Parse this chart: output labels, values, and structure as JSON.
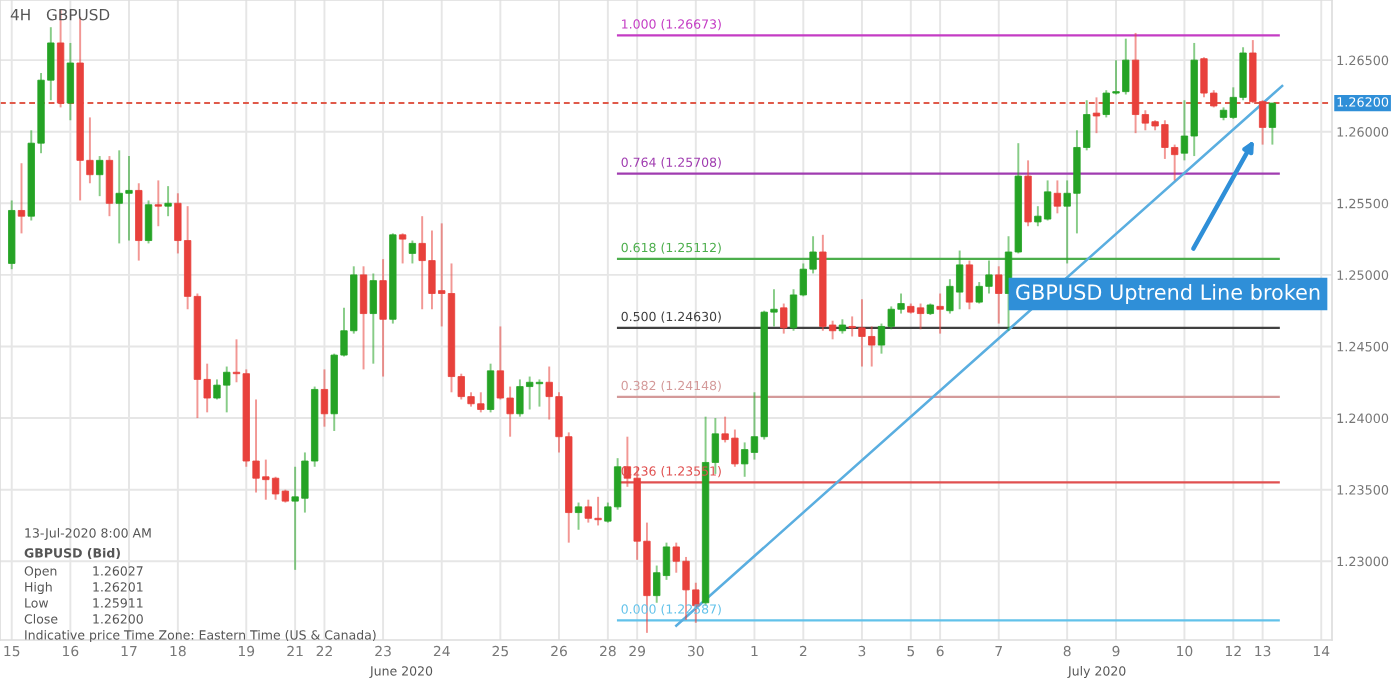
{
  "chart_data": {
    "type": "candlestick",
    "title": "GBPUSD",
    "subtitle": "4H",
    "categories": [
      "15",
      null,
      null,
      null,
      null,
      null,
      "16",
      null,
      null,
      null,
      null,
      null,
      "17",
      null,
      null,
      null,
      null,
      "18",
      null,
      null,
      null,
      null,
      null,
      null,
      "19",
      null,
      null,
      null,
      null,
      "21",
      null,
      null,
      "22",
      null,
      null,
      null,
      null,
      null,
      "23",
      null,
      null,
      null,
      null,
      null,
      "24",
      null,
      null,
      null,
      null,
      null,
      "25",
      null,
      null,
      null,
      null,
      null,
      "26",
      null,
      null,
      null,
      null,
      "28",
      null,
      null,
      "29",
      null,
      null,
      null,
      null,
      null,
      "30",
      null,
      null,
      null,
      null,
      null,
      "1",
      null,
      null,
      null,
      null,
      "2",
      null,
      null,
      null,
      null,
      null,
      "3",
      null,
      null,
      null,
      null,
      "5",
      null,
      null,
      "6",
      null,
      null,
      null,
      null,
      null,
      "7",
      null,
      null,
      null,
      null,
      null,
      null,
      "8",
      null,
      null,
      null,
      null,
      "9",
      null,
      null,
      null,
      null,
      null,
      null,
      "10",
      null,
      null,
      null,
      null,
      "12",
      null,
      null,
      "13",
      null,
      null,
      null,
      null,
      null,
      "14"
    ],
    "ohlc": [
      [
        1.2508,
        1.2552,
        1.2504,
        1.2545
      ],
      [
        1.2545,
        1.2578,
        1.2529,
        1.2541
      ],
      [
        1.2541,
        1.2601,
        1.2538,
        1.2592
      ],
      [
        1.2592,
        1.2641,
        1.2585,
        1.2636
      ],
      [
        1.2636,
        1.2673,
        1.2622,
        1.2662
      ],
      [
        1.2662,
        1.2685,
        1.2617,
        1.262
      ],
      [
        1.262,
        1.2662,
        1.2608,
        1.2648
      ],
      [
        1.2648,
        1.268,
        1.2552,
        1.258
      ],
      [
        1.258,
        1.261,
        1.2564,
        1.257
      ],
      [
        1.257,
        1.2583,
        1.2555,
        1.258
      ],
      [
        1.258,
        1.2583,
        1.2541,
        1.255
      ],
      [
        1.255,
        1.2587,
        1.2522,
        1.2557
      ],
      [
        1.2557,
        1.2583,
        1.2524,
        1.2559
      ],
      [
        1.2559,
        1.2564,
        1.251,
        1.2524
      ],
      [
        1.2524,
        1.2552,
        1.2522,
        1.2549
      ],
      [
        1.2549,
        1.2566,
        1.2534,
        1.2548
      ],
      [
        1.2548,
        1.2562,
        1.2541,
        1.255
      ],
      [
        1.255,
        1.2557,
        1.2515,
        1.2524
      ],
      [
        1.2524,
        1.2548,
        1.2476,
        1.2485
      ],
      [
        1.2485,
        1.2487,
        1.24,
        1.2427
      ],
      [
        1.2427,
        1.2438,
        1.2404,
        1.2414
      ],
      [
        1.2414,
        1.2427,
        1.2413,
        1.2423
      ],
      [
        1.2423,
        1.2436,
        1.2404,
        1.2432
      ],
      [
        1.2432,
        1.2455,
        1.2425,
        1.2431
      ],
      [
        1.2431,
        1.2434,
        1.2366,
        1.237
      ],
      [
        1.237,
        1.2413,
        1.2348,
        1.2358
      ],
      [
        1.2359,
        1.2371,
        1.2343,
        1.2357
      ],
      [
        1.2358,
        1.2359,
        1.2343,
        1.2347
      ],
      [
        1.2349,
        1.235,
        1.2341,
        1.2342
      ],
      [
        1.2342,
        1.2366,
        1.2294,
        1.2345
      ],
      [
        1.2344,
        1.2376,
        1.2334,
        1.237
      ],
      [
        1.237,
        1.2422,
        1.2366,
        1.242
      ],
      [
        1.242,
        1.2434,
        1.2394,
        1.2403
      ],
      [
        1.2403,
        1.2445,
        1.2391,
        1.2444
      ],
      [
        1.2444,
        1.2477,
        1.2443,
        1.2461
      ],
      [
        1.2461,
        1.2506,
        1.2459,
        1.25
      ],
      [
        1.25,
        1.2506,
        1.2434,
        1.2473
      ],
      [
        1.2473,
        1.2501,
        1.2438,
        1.2496
      ],
      [
        1.2496,
        1.2511,
        1.2429,
        1.2469
      ],
      [
        1.2469,
        1.2529,
        1.2466,
        1.2528
      ],
      [
        1.2528,
        1.2529,
        1.2508,
        1.2525
      ],
      [
        1.2515,
        1.2524,
        1.2508,
        1.2522
      ],
      [
        1.2522,
        1.2541,
        1.2476,
        1.251
      ],
      [
        1.251,
        1.2531,
        1.2476,
        1.2487
      ],
      [
        1.2489,
        1.2536,
        1.2464,
        1.2487
      ],
      [
        1.2487,
        1.2508,
        1.2418,
        1.2429
      ],
      [
        1.2429,
        1.2431,
        1.2413,
        1.2415
      ],
      [
        1.2415,
        1.2418,
        1.2408,
        1.241
      ],
      [
        1.241,
        1.2418,
        1.2404,
        1.2406
      ],
      [
        1.2406,
        1.2438,
        1.2404,
        1.2433
      ],
      [
        1.2433,
        1.2464,
        1.2413,
        1.2414
      ],
      [
        1.2414,
        1.2422,
        1.2387,
        1.2403
      ],
      [
        1.2403,
        1.2427,
        1.2401,
        1.2422
      ],
      [
        1.2422,
        1.2429,
        1.2406,
        1.2425
      ],
      [
        1.2424,
        1.2427,
        1.2408,
        1.2425
      ],
      [
        1.2425,
        1.2436,
        1.2399,
        1.2415
      ],
      [
        1.2415,
        1.2418,
        1.2376,
        1.2387
      ],
      [
        1.2387,
        1.239,
        1.2313,
        1.2334
      ],
      [
        1.2334,
        1.2341,
        1.2322,
        1.2338
      ],
      [
        1.2338,
        1.2343,
        1.2327,
        1.233
      ],
      [
        1.233,
        1.2345,
        1.2325,
        1.2329
      ],
      [
        1.2328,
        1.2341,
        1.2327,
        1.2338
      ],
      [
        1.2338,
        1.2372,
        1.2336,
        1.2366
      ],
      [
        1.2366,
        1.2387,
        1.2352,
        1.2358
      ],
      [
        1.2358,
        1.2366,
        1.2301,
        1.2314
      ],
      [
        1.2314,
        1.2327,
        1.225,
        1.2276
      ],
      [
        1.2276,
        1.2297,
        1.2271,
        1.2292
      ],
      [
        1.229,
        1.2313,
        1.2287,
        1.231
      ],
      [
        1.231,
        1.2313,
        1.2292,
        1.23
      ],
      [
        1.23,
        1.2303,
        1.2259,
        1.228
      ],
      [
        1.228,
        1.2285,
        1.2257,
        1.2269
      ],
      [
        1.2271,
        1.2401,
        1.2269,
        1.2369
      ],
      [
        1.2369,
        1.24,
        1.2361,
        1.2389
      ],
      [
        1.2389,
        1.2401,
        1.2383,
        1.2385
      ],
      [
        1.2386,
        1.2392,
        1.2366,
        1.2368
      ],
      [
        1.2368,
        1.2383,
        1.2359,
        1.2378
      ],
      [
        1.2376,
        1.2418,
        1.2371,
        1.2387
      ],
      [
        1.2387,
        1.2475,
        1.2385,
        1.2474
      ],
      [
        1.2474,
        1.249,
        1.2464,
        1.2476
      ],
      [
        1.2477,
        1.248,
        1.2459,
        1.2463
      ],
      [
        1.2463,
        1.249,
        1.2461,
        1.2486
      ],
      [
        1.2486,
        1.2508,
        1.2485,
        1.2504
      ],
      [
        1.2504,
        1.2527,
        1.2501,
        1.2516
      ],
      [
        1.2516,
        1.2528,
        1.2461,
        1.2464
      ],
      [
        1.2465,
        1.2468,
        1.2455,
        1.2461
      ],
      [
        1.2461,
        1.2469,
        1.2459,
        1.2465
      ],
      [
        1.2464,
        1.2471,
        1.2457,
        1.2463
      ],
      [
        1.2463,
        1.2483,
        1.2436,
        1.2457
      ],
      [
        1.2457,
        1.2464,
        1.2436,
        1.2451
      ],
      [
        1.2451,
        1.2466,
        1.2445,
        1.2464
      ],
      [
        1.2464,
        1.2478,
        1.2462,
        1.2476
      ],
      [
        1.2476,
        1.2487,
        1.2473,
        1.248
      ],
      [
        1.2478,
        1.248,
        1.2473,
        1.2474
      ],
      [
        1.2477,
        1.248,
        1.2462,
        1.2473
      ],
      [
        1.2473,
        1.248,
        1.2472,
        1.2479
      ],
      [
        1.2478,
        1.2487,
        1.2459,
        1.2476
      ],
      [
        1.2475,
        1.2497,
        1.2473,
        1.2492
      ],
      [
        1.2488,
        1.2517,
        1.2476,
        1.2507
      ],
      [
        1.2507,
        1.251,
        1.2476,
        1.2481
      ],
      [
        1.2481,
        1.2495,
        1.248,
        1.2492
      ],
      [
        1.2492,
        1.251,
        1.2487,
        1.25
      ],
      [
        1.25,
        1.2506,
        1.2466,
        1.2487
      ],
      [
        1.2487,
        1.2527,
        1.2461,
        1.2516
      ],
      [
        1.2516,
        1.2592,
        1.2515,
        1.2569
      ],
      [
        1.2569,
        1.258,
        1.2534,
        1.2537
      ],
      [
        1.2537,
        1.2548,
        1.2534,
        1.2541
      ],
      [
        1.2539,
        1.2566,
        1.2538,
        1.2558
      ],
      [
        1.2557,
        1.2566,
        1.2543,
        1.2548
      ],
      [
        1.2548,
        1.2566,
        1.2508,
        1.2557
      ],
      [
        1.2557,
        1.2601,
        1.2529,
        1.2589
      ],
      [
        1.2589,
        1.2622,
        1.2587,
        1.2612
      ],
      [
        1.2613,
        1.2624,
        1.2599,
        1.2611
      ],
      [
        1.2612,
        1.2629,
        1.261,
        1.2627
      ],
      [
        1.2627,
        1.265,
        1.2626,
        1.2628
      ],
      [
        1.2628,
        1.2665,
        1.2626,
        1.265
      ],
      [
        1.265,
        1.2669,
        1.2599,
        1.2612
      ],
      [
        1.2612,
        1.2615,
        1.2601,
        1.2606
      ],
      [
        1.2607,
        1.2608,
        1.2601,
        1.2604
      ],
      [
        1.2605,
        1.2608,
        1.2581,
        1.2589
      ],
      [
        1.2589,
        1.2591,
        1.2566,
        1.2584
      ],
      [
        1.2585,
        1.2622,
        1.258,
        1.2597
      ],
      [
        1.2597,
        1.2662,
        1.2583,
        1.265
      ],
      [
        1.2651,
        1.2652,
        1.2624,
        1.2627
      ],
      [
        1.2627,
        1.2629,
        1.2617,
        1.2618
      ],
      [
        1.261,
        1.2617,
        1.2608,
        1.2615
      ],
      [
        1.261,
        1.2631,
        1.2609,
        1.2624
      ],
      [
        1.2624,
        1.2659,
        1.2622,
        1.2655
      ],
      [
        1.2655,
        1.2664,
        1.262,
        1.2621
      ],
      [
        1.2621,
        1.2622,
        1.2591,
        1.2603
      ],
      [
        1.2603,
        1.262,
        1.2591,
        1.262
      ],
      null,
      null,
      null,
      null,
      null
    ],
    "colors": [
      "#25a325",
      "#e8413c",
      "#25a325",
      "#25a325",
      "#25a325",
      "#e8413c",
      "#25a325",
      "#e8413c",
      "#e8413c",
      "#25a325",
      "#e8413c",
      "#25a325",
      "#25a325",
      "#e8413c",
      "#25a325",
      "#e8413c",
      "#25a325",
      "#e8413c",
      "#e8413c",
      "#e8413c",
      "#e8413c",
      "#25a325",
      "#25a325",
      "#e8413c",
      "#e8413c",
      "#e8413c",
      "#e8413c",
      "#e8413c",
      "#e8413c",
      "#25a325",
      "#25a325",
      "#25a325",
      "#e8413c",
      "#25a325",
      "#25a325",
      "#25a325",
      "#e8413c",
      "#25a325",
      "#e8413c",
      "#25a325",
      "#e8413c",
      "#25a325",
      "#e8413c",
      "#e8413c",
      "#e8413c",
      "#e8413c",
      "#e8413c",
      "#e8413c",
      "#e8413c",
      "#25a325",
      "#e8413c",
      "#e8413c",
      "#25a325",
      "#25a325",
      "#25a325",
      "#e8413c",
      "#e8413c",
      "#e8413c",
      "#25a325",
      "#e8413c",
      "#e8413c",
      "#25a325",
      "#25a325",
      "#e8413c",
      "#e8413c",
      "#e8413c",
      "#25a325",
      "#25a325",
      "#e8413c",
      "#e8413c",
      "#e8413c",
      "#25a325",
      "#25a325",
      "#e8413c",
      "#e8413c",
      "#25a325",
      "#25a325",
      "#25a325",
      "#25a325",
      "#e8413c",
      "#25a325",
      "#25a325",
      "#25a325",
      "#e8413c",
      "#e8413c",
      "#25a325",
      "#e8413c",
      "#e8413c",
      "#e8413c",
      "#25a325",
      "#25a325",
      "#25a325",
      "#e8413c",
      "#e8413c",
      "#25a325",
      "#e8413c",
      "#25a325",
      "#25a325",
      "#e8413c",
      "#25a325",
      "#25a325",
      "#e8413c",
      "#25a325",
      "#25a325",
      "#e8413c",
      "#25a325",
      "#25a325",
      "#e8413c",
      "#25a325",
      "#25a325",
      "#25a325",
      "#e8413c",
      "#25a325",
      "#25a325",
      "#25a325",
      "#e8413c",
      "#e8413c",
      "#e8413c",
      "#e8413c",
      "#e8413c",
      "#25a325",
      "#25a325",
      "#e8413c",
      "#e8413c",
      "#25a325",
      "#25a325",
      "#25a325",
      "#e8413c",
      "#e8413c",
      "#25a325",
      null,
      null,
      null,
      null,
      null
    ],
    "series": [
      {
        "type": "line",
        "color": "#5aaee0",
        "values": [
          null,
          null,
          null,
          null,
          null,
          null,
          null,
          null,
          null,
          null,
          null,
          null,
          null,
          null,
          null,
          null,
          null,
          null,
          null,
          null,
          null,
          null,
          null,
          null,
          null,
          null,
          null,
          null,
          null,
          null,
          null,
          null,
          null,
          null,
          null,
          null,
          null,
          null,
          null,
          null,
          null,
          null,
          null,
          null,
          null,
          null,
          null,
          null,
          null,
          null,
          null,
          null,
          null,
          null,
          null,
          null,
          null,
          null,
          null,
          null,
          null,
          null,
          null,
          null,
          null,
          null,
          null,
          null,
          1.2255,
          null,
          null,
          null,
          null,
          null,
          null,
          null,
          null,
          null,
          null,
          null,
          null,
          null,
          null,
          null,
          null,
          null,
          null,
          null,
          null,
          null,
          null,
          null,
          null,
          null,
          null,
          null,
          null,
          null,
          null,
          null,
          null,
          null,
          null,
          null,
          null,
          null,
          null,
          null,
          null,
          null,
          null,
          null,
          null,
          null,
          null,
          null,
          null,
          null,
          null,
          null,
          null,
          null,
          null,
          null,
          null,
          null,
          null,
          null,
          null,
          null,
          1.2632,
          null,
          null,
          null,
          null
        ]
      }
    ],
    "ylim": [
      1.2245,
      1.2692
    ],
    "yticks": [
      {
        "value": 1.23,
        "label": "1.23000"
      },
      {
        "value": 1.235,
        "label": "1.23500"
      },
      {
        "value": 1.24,
        "label": "1.24000"
      },
      {
        "value": 1.245,
        "label": "1.24500"
      },
      {
        "value": 1.25,
        "label": "1.25000"
      },
      {
        "value": 1.255,
        "label": "1.25500"
      },
      {
        "value": 1.26,
        "label": "1.26000"
      },
      {
        "value": 1.265,
        "label": "1.26500"
      }
    ],
    "grid": true,
    "ref_lines": [
      {
        "axis": "y",
        "value": 1.26673,
        "label": "1.000 (1.26673)",
        "color": "#c43cc4"
      },
      {
        "axis": "y",
        "value": 1.25708,
        "label": "0.764 (1.25708)",
        "color": "#a03cb0"
      },
      {
        "axis": "y",
        "value": 1.25112,
        "label": "0.618 (1.25112)",
        "color": "#4cae4c"
      },
      {
        "axis": "y",
        "value": 1.2463,
        "label": "0.500 (1.24630)",
        "color": "#404040"
      },
      {
        "axis": "y",
        "value": 1.24148,
        "label": "0.382 (1.24148)",
        "color": "#d49a9a"
      },
      {
        "axis": "y",
        "value": 1.23551,
        "label": "0.236 (1.23551)",
        "color": "#e05050"
      },
      {
        "axis": "y",
        "value": 1.22587,
        "label": "0.000 (1.22587)",
        "color": "#62c2ea"
      },
      {
        "axis": "y",
        "value": 1.262,
        "label": "1.26200",
        "color": "#e05a4a",
        "line_style": "dashed"
      }
    ],
    "annotations": [
      "June 2020",
      "July 2020",
      "13-Jul-2020 8:00 AM",
      "GBPUSD (Bid)",
      "Open",
      "1.26027",
      "High",
      "1.26201",
      "Low",
      "1.25911",
      "Close",
      "1.26200",
      "Indicative price",
      "Time Zone: Eastern Time (US & Canada)",
      "GBPUSD Uptrend Line broken"
    ]
  }
}
